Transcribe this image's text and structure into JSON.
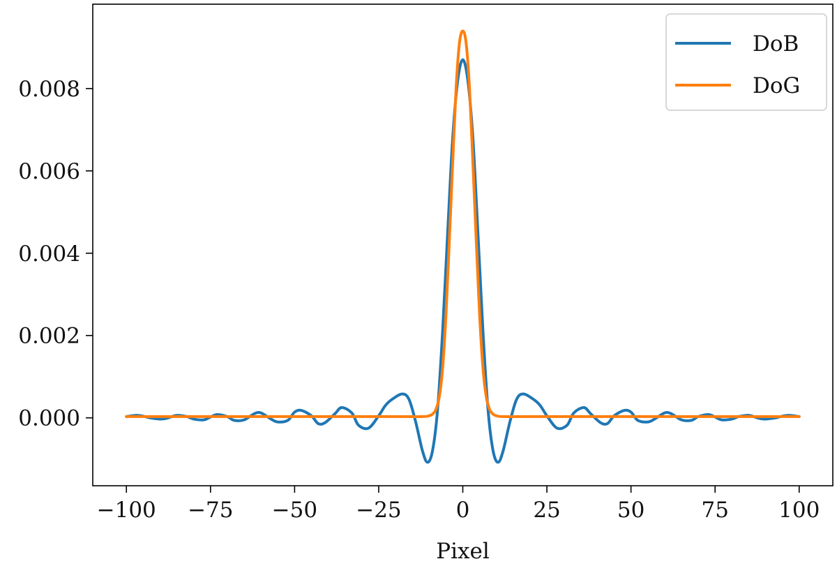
{
  "chart_data": {
    "type": "line",
    "title": "",
    "xlabel": "Pixel",
    "ylabel": "",
    "xlim": [
      -110,
      110
    ],
    "ylim": [
      -0.00165,
      0.01005
    ],
    "x_ticks": [
      -100,
      -75,
      -50,
      -25,
      0,
      25,
      50,
      75,
      100
    ],
    "x_tick_labels": [
      "−100",
      "−75",
      "−50",
      "−25",
      "0",
      "25",
      "50",
      "75",
      "100"
    ],
    "y_ticks": [
      0.0,
      0.002,
      0.004,
      0.006,
      0.008
    ],
    "y_tick_labels": [
      "0.000",
      "0.002",
      "0.004",
      "0.006",
      "0.008"
    ],
    "grid": false,
    "legend_position": "top-right",
    "series": [
      {
        "name": "DoB",
        "color": "#1f77b4",
        "x": [
          -100,
          -97,
          -95,
          -93,
          -90,
          -88,
          -85,
          -82,
          -80,
          -77,
          -75,
          -73,
          -70,
          -68,
          -65,
          -62,
          -60,
          -57,
          -55,
          -52,
          -50,
          -48,
          -45,
          -43,
          -41,
          -38,
          -36,
          -33,
          -31,
          -28,
          -25,
          -23,
          -21,
          -18,
          -16,
          -14,
          -12,
          -10.5,
          -9,
          -7.5,
          -6,
          -4.5,
          -3,
          -1.5,
          0,
          1.5,
          3,
          4.5,
          6,
          7.5,
          9,
          10.5,
          12,
          14,
          16,
          18,
          21,
          23,
          25,
          28,
          31,
          33,
          36,
          38,
          41,
          43,
          45,
          48,
          50,
          52,
          55,
          57,
          60,
          62,
          65,
          68,
          70,
          73,
          75,
          77,
          80,
          82,
          85,
          88,
          90,
          93,
          95,
          97,
          100
        ],
        "values": [
          3e-05,
          6e-05,
          4e-05,
          0.0,
          -3e-05,
          -1e-05,
          6e-05,
          3e-05,
          -3e-05,
          -5e-05,
          2e-05,
          8e-05,
          3e-05,
          -6e-05,
          -5e-05,
          0.0001,
          0.00012,
          -3e-05,
          -0.0001,
          -6e-05,
          0.00014,
          0.00018,
          5e-05,
          -0.00014,
          -0.00012,
          0.0001,
          0.00025,
          0.00012,
          -0.00018,
          -0.00025,
          5e-05,
          0.0003,
          0.00045,
          0.00058,
          0.00045,
          -0.0001,
          -0.0008,
          -0.00108,
          -0.0008,
          0.0002,
          0.0021,
          0.0045,
          0.0068,
          0.0082,
          0.0087,
          0.0082,
          0.0068,
          0.0045,
          0.0021,
          0.0002,
          -0.0008,
          -0.00108,
          -0.0008,
          -0.0001,
          0.00045,
          0.00058,
          0.00045,
          0.0003,
          5e-05,
          -0.00025,
          -0.00018,
          0.00012,
          0.00025,
          0.0001,
          -0.00012,
          -0.00014,
          5e-05,
          0.00018,
          0.00014,
          -6e-05,
          -0.0001,
          -3e-05,
          0.00012,
          0.0001,
          -5e-05,
          -6e-05,
          3e-05,
          8e-05,
          2e-05,
          -5e-05,
          -3e-05,
          3e-05,
          6e-05,
          -1e-05,
          -3e-05,
          0.0,
          4e-05,
          6e-05,
          3e-05
        ]
      },
      {
        "name": "DoG",
        "color": "#ff7f0e",
        "x": [
          -100,
          -60,
          -20,
          -12,
          -10,
          -9,
          -8,
          -7,
          -6,
          -5,
          -4,
          -3,
          -2,
          -1,
          0,
          1,
          2,
          3,
          4,
          5,
          6,
          7,
          8,
          9,
          10,
          12,
          20,
          60,
          100
        ],
        "values": [
          3e-05,
          3e-05,
          3e-05,
          3e-05,
          5e-05,
          9e-05,
          0.0002,
          0.0005,
          0.0012,
          0.0025,
          0.0043,
          0.0062,
          0.008,
          0.0091,
          0.0094,
          0.0091,
          0.008,
          0.0062,
          0.0043,
          0.0025,
          0.0012,
          0.0005,
          0.0002,
          9e-05,
          5e-05,
          3e-05,
          3e-05,
          3e-05,
          3e-05
        ]
      }
    ]
  }
}
